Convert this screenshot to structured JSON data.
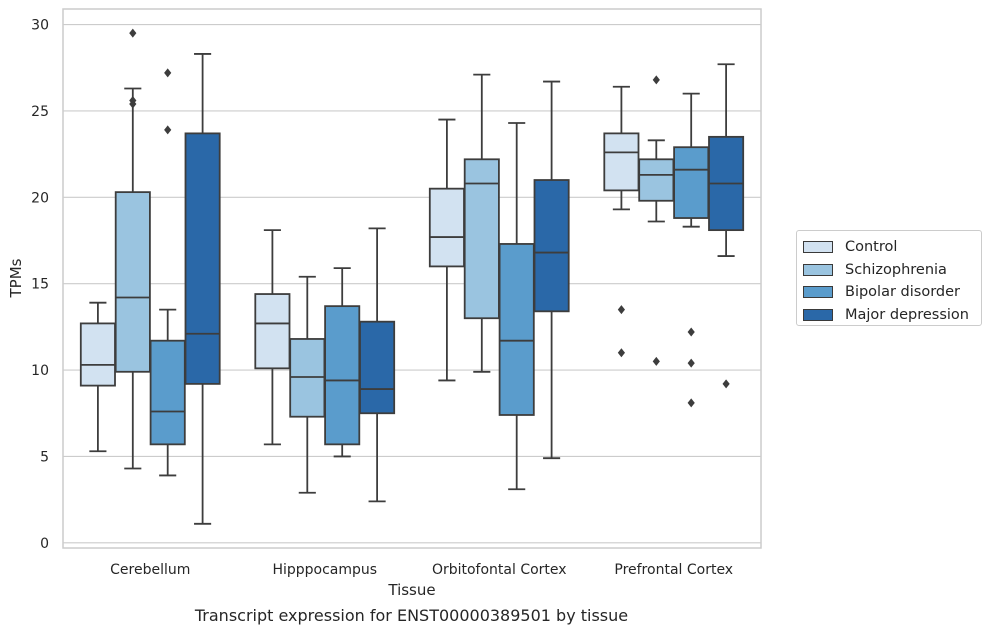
{
  "caption": "Transcript expression for ENST00000389501 by tissue",
  "chart_data": {
    "type": "box",
    "xlabel": "Tissue",
    "ylabel": "TPMs",
    "ylim": [
      -0.3,
      30.9
    ],
    "yticks": [
      0,
      5,
      10,
      15,
      20,
      25,
      30
    ],
    "grid": "horizontal",
    "legend_position": "right",
    "categories": [
      "Cerebellum",
      "Hipppocampus",
      "Orbitofontal Cortex",
      "Prefrontal Cortex"
    ],
    "series": [
      {
        "name": "Control",
        "color": "#d2e2f1",
        "boxes": [
          {
            "whisker_low": 5.3,
            "q1": 9.1,
            "median": 10.3,
            "q3": 12.7,
            "whisker_high": 13.9,
            "outliers": []
          },
          {
            "whisker_low": 5.7,
            "q1": 10.1,
            "median": 12.7,
            "q3": 14.4,
            "whisker_high": 18.1,
            "outliers": []
          },
          {
            "whisker_low": 9.4,
            "q1": 16.0,
            "median": 17.7,
            "q3": 20.5,
            "whisker_high": 24.5,
            "outliers": []
          },
          {
            "whisker_low": 19.3,
            "q1": 20.4,
            "median": 22.6,
            "q3": 23.7,
            "whisker_high": 26.4,
            "outliers": [
              13.5,
              11.0
            ]
          }
        ]
      },
      {
        "name": "Schizophrenia",
        "color": "#9ac4e0",
        "boxes": [
          {
            "whisker_low": 4.3,
            "q1": 9.9,
            "median": 14.2,
            "q3": 20.3,
            "whisker_high": 26.3,
            "outliers": [
              29.5,
              25.6,
              25.4
            ]
          },
          {
            "whisker_low": 2.9,
            "q1": 7.3,
            "median": 9.6,
            "q3": 11.8,
            "whisker_high": 15.4,
            "outliers": []
          },
          {
            "whisker_low": 9.9,
            "q1": 13.0,
            "median": 20.8,
            "q3": 22.2,
            "whisker_high": 27.1,
            "outliers": []
          },
          {
            "whisker_low": 18.6,
            "q1": 19.8,
            "median": 21.3,
            "q3": 22.2,
            "whisker_high": 23.3,
            "outliers": [
              26.8,
              10.5
            ]
          }
        ]
      },
      {
        "name": "Bipolar disorder",
        "color": "#5a9ccc",
        "boxes": [
          {
            "whisker_low": 3.9,
            "q1": 5.7,
            "median": 7.6,
            "q3": 11.7,
            "whisker_high": 13.5,
            "outliers": [
              27.2,
              23.9
            ]
          },
          {
            "whisker_low": 5.0,
            "q1": 5.7,
            "median": 9.4,
            "q3": 13.7,
            "whisker_high": 15.9,
            "outliers": []
          },
          {
            "whisker_low": 3.1,
            "q1": 7.4,
            "median": 11.7,
            "q3": 17.3,
            "whisker_high": 24.3,
            "outliers": []
          },
          {
            "whisker_low": 18.3,
            "q1": 18.8,
            "median": 21.6,
            "q3": 22.9,
            "whisker_high": 26.0,
            "outliers": [
              12.2,
              10.4,
              8.1
            ]
          }
        ]
      },
      {
        "name": "Major depression",
        "color": "#2a68a8",
        "boxes": [
          {
            "whisker_low": 1.1,
            "q1": 9.2,
            "median": 12.1,
            "q3": 23.7,
            "whisker_high": 28.3,
            "outliers": []
          },
          {
            "whisker_low": 2.4,
            "q1": 7.5,
            "median": 8.9,
            "q3": 12.8,
            "whisker_high": 18.2,
            "outliers": []
          },
          {
            "whisker_low": 4.9,
            "q1": 13.4,
            "median": 16.8,
            "q3": 21.0,
            "whisker_high": 26.7,
            "outliers": []
          },
          {
            "whisker_low": 16.6,
            "q1": 18.1,
            "median": 20.8,
            "q3": 23.5,
            "whisker_high": 27.7,
            "outliers": [
              9.2
            ]
          }
        ]
      }
    ]
  }
}
